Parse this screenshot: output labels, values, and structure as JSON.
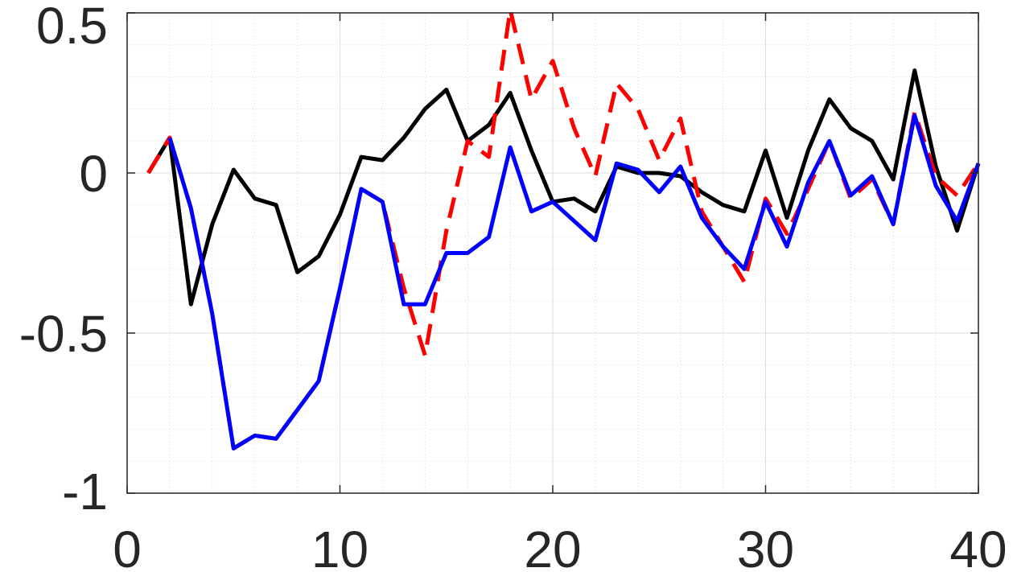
{
  "chart_data": {
    "type": "line",
    "title": "",
    "xlabel": "",
    "ylabel": "",
    "xlim": [
      0,
      40
    ],
    "ylim": [
      -1,
      0.5
    ],
    "grid": true,
    "minor_grid": true,
    "legend": "none",
    "x_ticks": [
      0,
      10,
      20,
      30,
      40
    ],
    "x_tick_labels": [
      "0",
      "10",
      "20",
      "30",
      "40"
    ],
    "y_ticks": [
      0.5,
      0,
      -0.5,
      -1
    ],
    "y_tick_labels": [
      "0.5",
      "0",
      "-0.5",
      "-1"
    ],
    "x": [
      1,
      2,
      3,
      4,
      5,
      6,
      7,
      8,
      9,
      10,
      11,
      12,
      13,
      14,
      15,
      16,
      17,
      18,
      19,
      20,
      21,
      22,
      23,
      24,
      25,
      26,
      27,
      28,
      29,
      30,
      31,
      32,
      33,
      34,
      35,
      36,
      37,
      38,
      39,
      40
    ],
    "series": [
      {
        "style": "solid",
        "color": "#000000",
        "values": [
          0,
          0.11,
          -0.41,
          -0.16,
          0.01,
          -0.08,
          -0.1,
          -0.31,
          -0.26,
          -0.13,
          0.05,
          0.04,
          0.11,
          0.2,
          0.26,
          0.1,
          0.15,
          0.25,
          0.07,
          -0.09,
          -0.08,
          -0.12,
          0.02,
          0.0,
          0.0,
          -0.01,
          -0.06,
          -0.1,
          -0.12,
          0.07,
          -0.14,
          0.07,
          0.23,
          0.14,
          0.1,
          -0.02,
          0.32,
          0.02,
          -0.18,
          0.03
        ]
      },
      {
        "style": "dashed",
        "color": "#ff0000",
        "values": [
          0,
          0.11,
          -0.11,
          -0.44,
          -0.86,
          -0.82,
          -0.83,
          -0.74,
          -0.65,
          -0.36,
          -0.05,
          -0.09,
          -0.36,
          -0.57,
          -0.18,
          0.1,
          0.05,
          0.51,
          0.23,
          0.35,
          0.14,
          -0.01,
          0.28,
          0.2,
          0.04,
          0.17,
          -0.12,
          -0.23,
          -0.34,
          -0.08,
          -0.19,
          -0.05,
          0.1,
          -0.08,
          -0.02,
          -0.16,
          0.19,
          -0.01,
          -0.07,
          0.03
        ]
      },
      {
        "style": "solid",
        "color": "#0000ff",
        "values": [
          null,
          0.11,
          -0.11,
          -0.44,
          -0.86,
          -0.82,
          -0.83,
          -0.74,
          -0.65,
          -0.36,
          -0.05,
          -0.09,
          -0.41,
          -0.41,
          -0.25,
          -0.25,
          -0.2,
          0.08,
          -0.12,
          -0.09,
          -0.15,
          -0.21,
          0.03,
          0.01,
          -0.06,
          0.02,
          -0.14,
          -0.23,
          -0.3,
          -0.09,
          -0.23,
          -0.03,
          0.1,
          -0.07,
          -0.01,
          -0.16,
          0.18,
          -0.04,
          -0.15,
          0.03
        ]
      }
    ]
  }
}
